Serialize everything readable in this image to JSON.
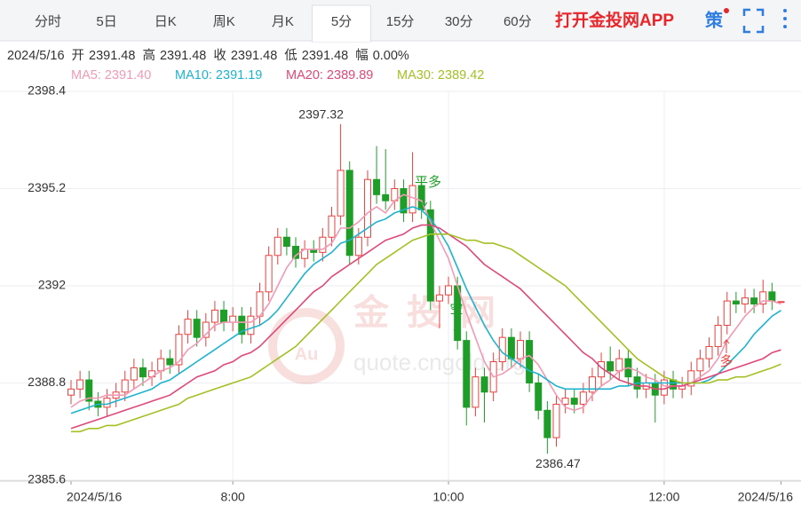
{
  "tabs": {
    "items": [
      "分时",
      "5日",
      "日K",
      "周K",
      "月K",
      "5分",
      "15分",
      "30分",
      "60分"
    ],
    "active": 5
  },
  "brand": "打开金投网APP",
  "strategy_icon": "策",
  "info": {
    "date": "2024/5/16",
    "items": [
      {
        "label": "开",
        "value": "2391.48"
      },
      {
        "label": "高",
        "value": "2391.48"
      },
      {
        "label": "收",
        "value": "2391.48"
      },
      {
        "label": "低",
        "value": "2391.48"
      },
      {
        "label": "幅",
        "value": "0.00%"
      }
    ]
  },
  "watermark": {
    "logo": "Au",
    "name": "金投网",
    "url": "quote.cngold.org"
  },
  "chart_data": {
    "type": "candlestick",
    "categories": [
      "2024/5/16",
      null,
      null,
      null,
      null,
      null,
      null,
      null,
      null,
      null,
      null,
      null,
      null,
      null,
      null,
      null,
      null,
      null,
      "8:00",
      null,
      null,
      null,
      null,
      null,
      null,
      null,
      null,
      null,
      null,
      null,
      null,
      null,
      null,
      null,
      null,
      null,
      null,
      null,
      null,
      null,
      null,
      null,
      "10:00",
      null,
      null,
      null,
      null,
      null,
      null,
      null,
      null,
      null,
      null,
      null,
      null,
      null,
      null,
      null,
      null,
      null,
      null,
      null,
      null,
      null,
      null,
      null,
      "12:00",
      null,
      null,
      null,
      null,
      null,
      null,
      null,
      null,
      null,
      null,
      null,
      null,
      "2024/5/16"
    ],
    "open": [
      2388.4,
      2388.6,
      2388.9,
      2388.2,
      2388.0,
      2388.3,
      2388.5,
      2388.9,
      2389.3,
      2389.0,
      2389.2,
      2389.6,
      2389.4,
      2390.4,
      2390.9,
      2390.3,
      2390.8,
      2391.2,
      2390.8,
      2391.0,
      2390.4,
      2391.0,
      2391.8,
      2393.0,
      2393.6,
      2393.3,
      2392.9,
      2393.2,
      2393.1,
      2393.6,
      2394.3,
      2395.8,
      2393.0,
      2393.6,
      2395.5,
      2395.0,
      2394.8,
      2395.2,
      2394.4,
      2395.3,
      2394.5,
      2391.5,
      2391.7,
      2392.0,
      2390.2,
      2388.0,
      2389.0,
      2388.5,
      2389.5,
      2390.3,
      2389.6,
      2390.2,
      2388.8,
      2387.9,
      2387.0,
      2388.1,
      2388.3,
      2388.1,
      2388.5,
      2389.0,
      2389.5,
      2389.2,
      2389.6,
      2389.0,
      2388.6,
      2388.8,
      2388.4,
      2388.9,
      2388.6,
      2388.7,
      2389.2,
      2389.6,
      2390.0,
      2390.7,
      2391.5,
      2391.4,
      2391.6,
      2391.4,
      2391.8,
      2391.48
    ],
    "high": [
      2388.9,
      2389.2,
      2389.2,
      2388.5,
      2388.6,
      2388.8,
      2389.2,
      2389.6,
      2389.6,
      2389.5,
      2389.9,
      2389.9,
      2390.7,
      2391.2,
      2391.2,
      2391.1,
      2391.5,
      2391.5,
      2391.3,
      2391.3,
      2391.3,
      2392.1,
      2393.3,
      2393.9,
      2393.9,
      2393.6,
      2393.5,
      2393.5,
      2393.9,
      2394.6,
      2397.32,
      2396.1,
      2393.9,
      2395.8,
      2396.6,
      2396.5,
      2395.5,
      2395.5,
      2396.4,
      2395.6,
      2394.8,
      2392.0,
      2392.3,
      2392.3,
      2390.5,
      2389.3,
      2389.3,
      2389.8,
      2390.6,
      2390.6,
      2390.5,
      2390.5,
      2389.1,
      2388.2,
      2388.4,
      2388.6,
      2388.6,
      2388.8,
      2389.3,
      2389.8,
      2390.0,
      2389.9,
      2389.9,
      2389.3,
      2389.1,
      2389.1,
      2389.2,
      2389.2,
      2389.0,
      2389.5,
      2389.9,
      2390.3,
      2391.0,
      2391.8,
      2391.8,
      2391.9,
      2391.9,
      2392.2,
      2392.1,
      2391.48
    ],
    "low": [
      2388.1,
      2388.3,
      2387.9,
      2387.7,
      2387.7,
      2388.0,
      2388.2,
      2388.6,
      2388.7,
      2388.7,
      2388.9,
      2389.1,
      2389.1,
      2390.1,
      2390.0,
      2390.0,
      2390.5,
      2390.5,
      2390.5,
      2390.1,
      2390.1,
      2390.7,
      2391.5,
      2392.7,
      2393.0,
      2392.6,
      2392.6,
      2392.8,
      2392.8,
      2393.3,
      2394.0,
      2392.7,
      2392.7,
      2393.3,
      2394.7,
      2394.5,
      2394.5,
      2394.1,
      2394.1,
      2394.2,
      2391.2,
      2390.6,
      2391.4,
      2389.9,
      2387.4,
      2387.7,
      2387.5,
      2388.2,
      2389.2,
      2389.3,
      2389.3,
      2388.5,
      2387.6,
      2386.47,
      2386.7,
      2387.8,
      2387.8,
      2387.8,
      2388.2,
      2388.7,
      2388.9,
      2388.9,
      2388.7,
      2388.3,
      2388.3,
      2387.5,
      2388.1,
      2388.3,
      2388.3,
      2388.4,
      2388.9,
      2389.3,
      2389.7,
      2390.4,
      2391.1,
      2391.1,
      2391.1,
      2391.1,
      2391.2,
      2391.48
    ],
    "close": [
      2388.6,
      2388.9,
      2388.2,
      2388.0,
      2388.3,
      2388.5,
      2388.9,
      2389.3,
      2389.0,
      2389.2,
      2389.6,
      2389.4,
      2390.4,
      2390.9,
      2390.3,
      2390.8,
      2391.2,
      2390.8,
      2391.0,
      2390.4,
      2391.0,
      2391.8,
      2393.0,
      2393.6,
      2393.3,
      2392.9,
      2393.2,
      2393.1,
      2393.6,
      2394.3,
      2395.8,
      2393.0,
      2393.6,
      2395.5,
      2395.0,
      2394.8,
      2395.2,
      2394.4,
      2395.3,
      2394.5,
      2391.5,
      2391.7,
      2392.0,
      2390.2,
      2388.0,
      2389.0,
      2388.5,
      2389.5,
      2390.3,
      2389.6,
      2390.2,
      2388.8,
      2387.9,
      2387.0,
      2388.1,
      2388.3,
      2388.1,
      2388.5,
      2389.0,
      2389.5,
      2389.2,
      2389.6,
      2389.0,
      2388.6,
      2388.8,
      2388.4,
      2388.9,
      2388.6,
      2388.7,
      2389.2,
      2389.6,
      2390.0,
      2390.7,
      2391.5,
      2391.4,
      2391.6,
      2391.4,
      2391.8,
      2391.5,
      2391.48
    ],
    "up_color": "#e8413e",
    "down_color": "#1e9e28",
    "series": [
      {
        "name": "MA5: 2391.40",
        "color": "#f29ab5",
        "values": [
          2388.0,
          2388.2,
          2388.3,
          2388.3,
          2388.4,
          2388.4,
          2388.4,
          2388.6,
          2388.8,
          2389.0,
          2389.2,
          2389.3,
          2389.5,
          2389.9,
          2390.1,
          2390.4,
          2390.7,
          2390.8,
          2390.8,
          2390.8,
          2390.8,
          2391.0,
          2391.4,
          2392.0,
          2392.6,
          2393.0,
          2393.2,
          2393.2,
          2393.2,
          2393.4,
          2393.9,
          2393.9,
          2394.1,
          2394.4,
          2394.6,
          2394.4,
          2394.8,
          2395.0,
          2394.9,
          2394.8,
          2394.1,
          2393.5,
          2392.9,
          2392.0,
          2391.1,
          2390.3,
          2389.5,
          2389.0,
          2389.1,
          2389.3,
          2389.6,
          2389.7,
          2389.4,
          2388.9,
          2388.4,
          2388.0,
          2387.9,
          2388.0,
          2388.4,
          2388.7,
          2388.9,
          2389.2,
          2389.3,
          2389.2,
          2389.0,
          2388.9,
          2388.7,
          2388.7,
          2388.7,
          2388.8,
          2389.0,
          2389.2,
          2389.6,
          2390.2,
          2390.6,
          2391.0,
          2391.3,
          2391.5,
          2391.5,
          2391.4
        ]
      },
      {
        "name": "MA10: 2391.19",
        "color": "#1fb3cf",
        "values": [
          2387.8,
          2387.9,
          2388.0,
          2388.1,
          2388.1,
          2388.2,
          2388.3,
          2388.4,
          2388.5,
          2388.6,
          2388.8,
          2388.9,
          2389.1,
          2389.3,
          2389.5,
          2389.7,
          2389.9,
          2390.1,
          2390.3,
          2390.5,
          2390.6,
          2390.7,
          2390.9,
          2391.2,
          2391.6,
          2392.0,
          2392.4,
          2392.7,
          2392.9,
          2393.1,
          2393.4,
          2393.5,
          2393.7,
          2393.9,
          2394.1,
          2394.2,
          2394.4,
          2394.5,
          2394.6,
          2394.5,
          2394.2,
          2393.8,
          2393.3,
          2392.6,
          2391.9,
          2391.3,
          2390.7,
          2390.2,
          2389.8,
          2389.6,
          2389.4,
          2389.2,
          2389.1,
          2388.9,
          2388.7,
          2388.6,
          2388.6,
          2388.6,
          2388.6,
          2388.6,
          2388.6,
          2388.7,
          2388.7,
          2388.8,
          2388.8,
          2388.8,
          2388.8,
          2388.8,
          2388.8,
          2388.8,
          2388.8,
          2388.9,
          2389.1,
          2389.4,
          2389.7,
          2390.0,
          2390.4,
          2390.7,
          2391.0,
          2391.19
        ]
      },
      {
        "name": "MA20: 2389.89",
        "color": "#e0487a",
        "values": [
          2387.3,
          2387.4,
          2387.5,
          2387.6,
          2387.7,
          2387.8,
          2387.9,
          2388.0,
          2388.1,
          2388.2,
          2388.3,
          2388.4,
          2388.6,
          2388.8,
          2389.0,
          2389.1,
          2389.2,
          2389.4,
          2389.5,
          2389.7,
          2389.8,
          2390.0,
          2390.3,
          2390.6,
          2390.9,
          2391.2,
          2391.5,
          2391.8,
          2392.0,
          2392.3,
          2392.5,
          2392.7,
          2392.9,
          2393.1,
          2393.3,
          2393.5,
          2393.6,
          2393.7,
          2393.9,
          2394.0,
          2394.0,
          2393.9,
          2393.7,
          2393.5,
          2393.3,
          2393.0,
          2392.7,
          2392.5,
          2392.3,
          2392.1,
          2391.9,
          2391.6,
          2391.3,
          2391.0,
          2390.7,
          2390.4,
          2390.1,
          2389.8,
          2389.6,
          2389.3,
          2389.1,
          2388.9,
          2388.8,
          2388.7,
          2388.7,
          2388.6,
          2388.6,
          2388.7,
          2388.7,
          2388.8,
          2388.9,
          2389.0,
          2389.1,
          2389.2,
          2389.3,
          2389.4,
          2389.5,
          2389.6,
          2389.8,
          2389.89
        ]
      },
      {
        "name": "MA30: 2389.42",
        "color": "#a4c024",
        "values": [
          2387.2,
          2387.2,
          2387.3,
          2387.3,
          2387.4,
          2387.4,
          2387.5,
          2387.6,
          2387.7,
          2387.8,
          2387.9,
          2388.0,
          2388.1,
          2388.3,
          2388.4,
          2388.5,
          2388.6,
          2388.7,
          2388.8,
          2388.9,
          2389.0,
          2389.2,
          2389.4,
          2389.6,
          2389.8,
          2390.0,
          2390.3,
          2390.6,
          2390.9,
          2391.2,
          2391.5,
          2391.8,
          2392.1,
          2392.4,
          2392.7,
          2392.9,
          2393.1,
          2393.3,
          2393.5,
          2393.6,
          2393.7,
          2393.7,
          2393.7,
          2393.6,
          2393.5,
          2393.5,
          2393.4,
          2393.4,
          2393.3,
          2393.2,
          2393.0,
          2392.8,
          2392.6,
          2392.4,
          2392.2,
          2392.0,
          2391.7,
          2391.4,
          2391.1,
          2390.8,
          2390.5,
          2390.2,
          2389.9,
          2389.6,
          2389.4,
          2389.2,
          2389.0,
          2388.9,
          2388.8,
          2388.8,
          2388.8,
          2388.8,
          2388.9,
          2388.9,
          2389.0,
          2389.0,
          2389.1,
          2389.2,
          2389.3,
          2389.42
        ]
      }
    ],
    "annotations": [
      "平多",
      "空",
      "多"
    ],
    "ylim": [
      2385.6,
      2398.4
    ],
    "yticks": [
      2398.4,
      2395.2,
      2392,
      2388.8,
      2385.6
    ],
    "grid": true
  }
}
